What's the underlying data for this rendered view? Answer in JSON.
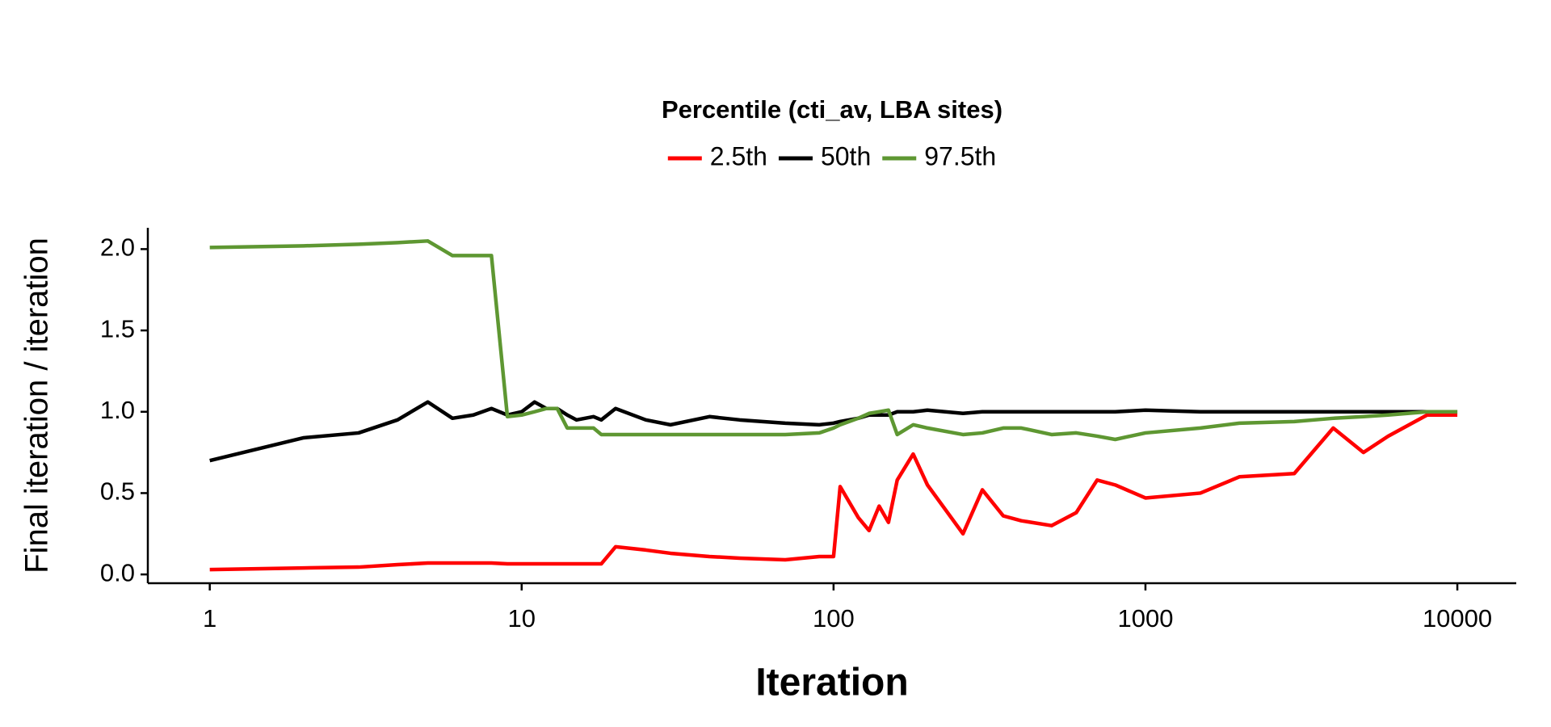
{
  "chart_data": {
    "type": "line",
    "legend_title": "Percentile (cti_av, LBA sites)",
    "legend_position": "top",
    "x_label": "Iteration",
    "y_label": "Final iteration / iteration",
    "xscale": "log",
    "xlim": [
      0.633,
      15450
    ],
    "xticks": [
      1,
      10,
      100,
      1000,
      10000
    ],
    "ylim": [
      -0.054,
      2.131
    ],
    "yticks": [
      {
        "value": 0,
        "label": "0.0"
      },
      0.5,
      {
        "value": 1,
        "label": "1.0"
      },
      1.5,
      {
        "value": 2,
        "label": "2.0"
      }
    ],
    "x": [
      1,
      2,
      3,
      4,
      5,
      6,
      7,
      8,
      9,
      10,
      11,
      12,
      13,
      14,
      15,
      17,
      18,
      20,
      25,
      30,
      40,
      50,
      70,
      90,
      100,
      105,
      120,
      130,
      140,
      150,
      160,
      180,
      200,
      260,
      300,
      350,
      400,
      500,
      600,
      700,
      800,
      1000,
      1500,
      2000,
      3000,
      4000,
      5000,
      6000,
      8000,
      10000
    ],
    "series": [
      {
        "name": "2.5th",
        "color": "#ff0000",
        "values": [
          0.03,
          0.04,
          0.045,
          0.06,
          0.07,
          0.07,
          0.07,
          0.07,
          0.065,
          0.065,
          0.065,
          0.065,
          0.065,
          0.065,
          0.065,
          0.065,
          0.065,
          0.17,
          0.15,
          0.13,
          0.11,
          0.1,
          0.09,
          0.11,
          0.11,
          0.54,
          0.35,
          0.27,
          0.42,
          0.32,
          0.58,
          0.74,
          0.55,
          0.25,
          0.52,
          0.36,
          0.33,
          0.3,
          0.38,
          0.58,
          0.55,
          0.47,
          0.5,
          0.6,
          0.62,
          0.9,
          0.75,
          0.85,
          0.98,
          0.98
        ]
      },
      {
        "name": "50th",
        "color": "#000000",
        "values": [
          0.7,
          0.84,
          0.87,
          0.95,
          1.06,
          0.96,
          0.98,
          1.02,
          0.98,
          1.0,
          1.06,
          1.02,
          1.02,
          0.98,
          0.95,
          0.97,
          0.95,
          1.02,
          0.95,
          0.92,
          0.97,
          0.95,
          0.93,
          0.92,
          0.93,
          0.94,
          0.96,
          0.98,
          0.98,
          0.98,
          1.0,
          1.0,
          1.01,
          0.99,
          1.0,
          1.0,
          1.0,
          1.0,
          1.0,
          1.0,
          1.0,
          1.01,
          1.0,
          1.0,
          1.0,
          1.0,
          1.0,
          1.0,
          1.0,
          1.0
        ]
      },
      {
        "name": "97.5th",
        "color": "#5e9732",
        "values": [
          2.01,
          2.02,
          2.03,
          2.04,
          2.05,
          1.96,
          1.96,
          1.96,
          0.97,
          0.98,
          1.0,
          1.02,
          1.02,
          0.9,
          0.9,
          0.9,
          0.86,
          0.86,
          0.86,
          0.86,
          0.86,
          0.86,
          0.86,
          0.87,
          0.9,
          0.92,
          0.96,
          0.99,
          1.0,
          1.01,
          0.86,
          0.92,
          0.9,
          0.86,
          0.87,
          0.9,
          0.9,
          0.86,
          0.87,
          0.85,
          0.83,
          0.87,
          0.9,
          0.93,
          0.94,
          0.96,
          0.97,
          0.98,
          1.0,
          1.0
        ]
      }
    ]
  }
}
